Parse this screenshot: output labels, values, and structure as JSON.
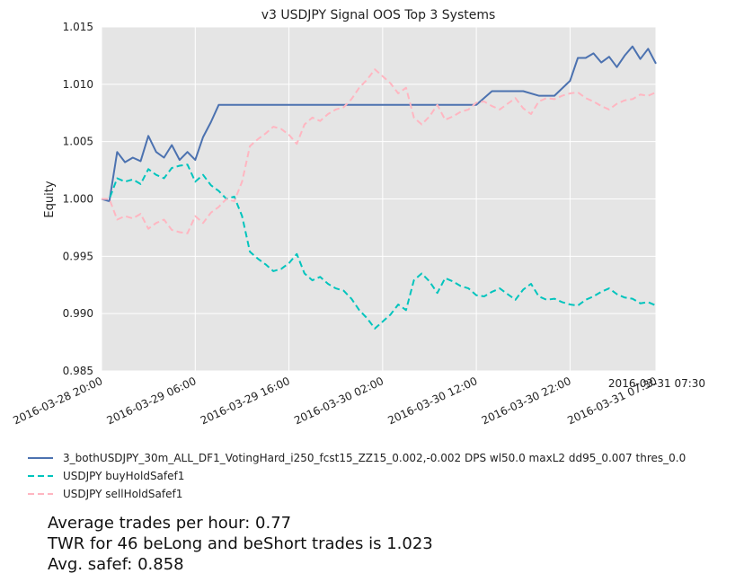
{
  "chart_data": {
    "type": "line",
    "title": "v3 USDJPY Signal OOS Top 3 Systems",
    "ylabel": "Equity",
    "xlabel": "",
    "ylim": [
      0.985,
      1.015
    ],
    "xlim": [
      0,
      35.5
    ],
    "yticks": [
      {
        "v": 0.985,
        "label": "0.985"
      },
      {
        "v": 0.99,
        "label": "0.990"
      },
      {
        "v": 0.995,
        "label": "0.995"
      },
      {
        "v": 1.0,
        "label": "1.000"
      },
      {
        "v": 1.005,
        "label": "1.005"
      },
      {
        "v": 1.01,
        "label": "1.010"
      },
      {
        "v": 1.015,
        "label": "1.015"
      }
    ],
    "xticks": [
      {
        "v": 0,
        "label": "2016-03-28 20:00"
      },
      {
        "v": 6,
        "label": "2016-03-29 06:00"
      },
      {
        "v": 12,
        "label": "2016-03-29 16:00"
      },
      {
        "v": 18,
        "label": "2016-03-30 02:00"
      },
      {
        "v": 24,
        "label": "2016-03-30 12:00"
      },
      {
        "v": 30,
        "label": "2016-03-30 22:00"
      },
      {
        "v": 35.5,
        "label": "2016-03-31 07:30"
      }
    ],
    "corner_label": "2016-03-31 07:30",
    "grid": true,
    "legend_position": "below",
    "series": [
      {
        "name": "3_bothUSDJPY_30m_ALL_DF1_VotingHard_i250_fcst15_ZZ15_0.002,-0.002 DPS wl50.0 maxL2 dd95_0.007 thres_0.0",
        "color": "#4c72b0",
        "dash": "solid",
        "x": [
          0,
          0.5,
          1,
          1.5,
          2,
          2.5,
          3,
          3.5,
          4,
          4.5,
          5,
          5.5,
          6,
          6.5,
          7,
          7.5,
          8,
          9,
          10,
          11,
          12,
          13,
          14,
          15,
          16,
          17,
          18,
          19,
          20,
          21,
          22,
          23,
          24,
          25,
          26,
          27,
          28,
          29,
          30,
          30.5,
          31,
          31.5,
          32,
          32.5,
          33,
          33.5,
          34,
          34.5,
          35,
          35.5
        ],
        "y": [
          1.0,
          0.9998,
          1.0041,
          1.0032,
          1.0036,
          1.0033,
          1.0055,
          1.0041,
          1.0036,
          1.0047,
          1.0034,
          1.0041,
          1.0034,
          1.0054,
          1.0067,
          1.0082,
          1.0082,
          1.0082,
          1.0082,
          1.0082,
          1.0082,
          1.0082,
          1.0082,
          1.0082,
          1.0082,
          1.0082,
          1.0082,
          1.0082,
          1.0082,
          1.0082,
          1.0082,
          1.0082,
          1.0082,
          1.0094,
          1.0094,
          1.0094,
          1.009,
          1.009,
          1.0103,
          1.0123,
          1.0123,
          1.0127,
          1.0119,
          1.0124,
          1.0115,
          1.0125,
          1.0133,
          1.0122,
          1.0131,
          1.0118
        ]
      },
      {
        "name": "USDJPY buyHoldSafef1",
        "color": "#00c4bd",
        "dash": "dashed",
        "x": [
          0,
          0.5,
          1,
          1.5,
          2,
          2.5,
          3,
          3.5,
          4,
          4.5,
          5,
          5.5,
          6,
          6.5,
          7,
          7.5,
          8,
          8.5,
          9,
          9.5,
          10,
          10.5,
          11,
          11.5,
          12,
          12.5,
          13,
          13.5,
          14,
          14.5,
          15,
          15.5,
          16,
          16.5,
          17,
          17.5,
          18,
          18.5,
          19,
          19.5,
          20,
          20.5,
          21,
          21.5,
          22,
          22.5,
          23,
          23.5,
          24,
          24.5,
          25,
          25.5,
          26,
          26.5,
          27,
          27.5,
          28,
          28.5,
          29,
          29.5,
          30,
          30.5,
          31,
          31.5,
          32,
          32.5,
          33,
          33.5,
          34,
          34.5,
          35,
          35.5
        ],
        "y": [
          1.0,
          1.0,
          1.0018,
          1.0015,
          1.0017,
          1.0013,
          1.0026,
          1.0021,
          1.0018,
          1.0027,
          1.0029,
          1.003,
          1.0015,
          1.0021,
          1.0012,
          1.0007,
          1.0,
          1.0002,
          0.9985,
          0.9954,
          0.9948,
          0.9943,
          0.9937,
          0.9939,
          0.9944,
          0.9952,
          0.9935,
          0.9929,
          0.9932,
          0.9926,
          0.9922,
          0.992,
          0.9913,
          0.9903,
          0.9896,
          0.9887,
          0.9893,
          0.9899,
          0.9908,
          0.9903,
          0.9929,
          0.9935,
          0.9928,
          0.9918,
          0.9931,
          0.9928,
          0.9924,
          0.9922,
          0.9916,
          0.9915,
          0.9919,
          0.9922,
          0.9917,
          0.9912,
          0.9921,
          0.9926,
          0.9915,
          0.9912,
          0.9913,
          0.991,
          0.9908,
          0.9907,
          0.9912,
          0.9915,
          0.9919,
          0.9922,
          0.9917,
          0.9914,
          0.9913,
          0.9909,
          0.991,
          0.9907
        ]
      },
      {
        "name": "USDJPY sellHoldSafef1",
        "color": "#ffb6c1",
        "dash": "dashed",
        "x": [
          0,
          0.5,
          1,
          1.5,
          2,
          2.5,
          3,
          3.5,
          4,
          4.5,
          5,
          5.5,
          6,
          6.5,
          7,
          7.5,
          8,
          8.5,
          9,
          9.5,
          10,
          10.5,
          11,
          11.5,
          12,
          12.5,
          13,
          13.5,
          14,
          14.5,
          15,
          15.5,
          16,
          16.5,
          17,
          17.5,
          18,
          18.5,
          19,
          19.5,
          20,
          20.5,
          21,
          21.5,
          22,
          22.5,
          23,
          23.5,
          24,
          24.5,
          25,
          25.5,
          26,
          26.5,
          27,
          27.5,
          28,
          28.5,
          29,
          29.5,
          30,
          30.5,
          31,
          31.5,
          32,
          32.5,
          33,
          33.5,
          34,
          34.5,
          35,
          35.5
        ],
        "y": [
          1.0,
          1.0,
          0.9982,
          0.9985,
          0.9983,
          0.9987,
          0.9974,
          0.9979,
          0.9982,
          0.9973,
          0.9971,
          0.997,
          0.9985,
          0.9979,
          0.9988,
          0.9993,
          1.0,
          0.9998,
          1.0015,
          1.0046,
          1.0052,
          1.0057,
          1.0063,
          1.0061,
          1.0056,
          1.0048,
          1.0065,
          1.0071,
          1.0068,
          1.0074,
          1.0078,
          1.008,
          1.0087,
          1.0097,
          1.0104,
          1.0113,
          1.0107,
          1.0101,
          1.0092,
          1.0097,
          1.0071,
          1.0065,
          1.0072,
          1.0082,
          1.0069,
          1.0072,
          1.0076,
          1.0078,
          1.0084,
          1.0085,
          1.0081,
          1.0078,
          1.0083,
          1.0088,
          1.0079,
          1.0074,
          1.0085,
          1.0088,
          1.0087,
          1.009,
          1.0092,
          1.0093,
          1.0088,
          1.0085,
          1.0081,
          1.0078,
          1.0083,
          1.0086,
          1.0087,
          1.0091,
          1.009,
          1.0093
        ]
      }
    ]
  },
  "notes": {
    "line1": "Average trades per hour: 0.77",
    "line2": "TWR for 46 beLong and beShort trades is 1.023",
    "line3": "Avg. safef: 0.858"
  }
}
